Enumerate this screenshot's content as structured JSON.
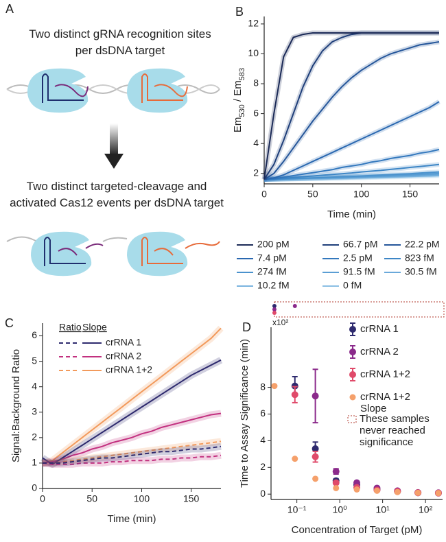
{
  "diagram": {
    "panel": "A",
    "top_text": "Two distinct gRNA recognition sites per dsDNA target",
    "bottom_text": "Two distinct targeted-cleavage and activated Cas12 events per dsDNA target"
  },
  "chart_data": [
    {
      "type": "line",
      "panel": "B",
      "x_label": "Time (min)",
      "y_label": [
        {
          "text": "Em"
        },
        {
          "text": "530",
          "sub": true
        },
        {
          "text": " / Em"
        },
        {
          "text": "583",
          "sub": true
        }
      ],
      "x": [
        0,
        10,
        20,
        30,
        40,
        50,
        60,
        70,
        80,
        90,
        100,
        110,
        120,
        130,
        140,
        150,
        160,
        170,
        180
      ],
      "xlim": [
        0,
        180
      ],
      "xticks": [
        0,
        50,
        100,
        150
      ],
      "ylim": [
        1.3,
        12.5
      ],
      "yticks": [
        2,
        4,
        6,
        8,
        10,
        12
      ],
      "legend_columns": 3,
      "series": [
        {
          "name": "200 pM",
          "color": "#1b2a57",
          "values": [
            1.6,
            6.0,
            9.8,
            11.1,
            11.3,
            11.4,
            11.4,
            11.4,
            11.4,
            11.4,
            11.4,
            11.4,
            11.4,
            11.4,
            11.4,
            11.4,
            11.4,
            11.4,
            11.4
          ]
        },
        {
          "name": "66.7 pM",
          "color": "#1f3f7a",
          "values": [
            1.6,
            2.6,
            4.2,
            6.0,
            7.8,
            9.2,
            10.2,
            10.8,
            11.1,
            11.3,
            11.4,
            11.4,
            11.4,
            11.4,
            11.4,
            11.4,
            11.4,
            11.4,
            11.4
          ]
        },
        {
          "name": "22.2 pM",
          "color": "#25569a",
          "values": [
            1.6,
            2.0,
            2.8,
            3.7,
            4.6,
            5.5,
            6.3,
            7.1,
            7.8,
            8.4,
            8.9,
            9.3,
            9.7,
            10.0,
            10.2,
            10.4,
            10.6,
            10.7,
            10.8
          ]
        },
        {
          "name": "7.4 pM",
          "color": "#2a68b0",
          "values": [
            1.6,
            1.7,
            1.9,
            2.2,
            2.5,
            2.8,
            3.1,
            3.4,
            3.7,
            4.0,
            4.3,
            4.6,
            4.9,
            5.2,
            5.5,
            5.8,
            6.1,
            6.4,
            6.8
          ]
        },
        {
          "name": "2.5 pM",
          "color": "#3378bd",
          "values": [
            1.6,
            1.65,
            1.75,
            1.85,
            1.95,
            2.05,
            2.15,
            2.25,
            2.4,
            2.5,
            2.6,
            2.75,
            2.85,
            3.0,
            3.1,
            3.2,
            3.35,
            3.45,
            3.6
          ]
        },
        {
          "name": "823 fM",
          "color": "#3d86c6",
          "values": [
            1.6,
            1.63,
            1.68,
            1.73,
            1.78,
            1.83,
            1.88,
            1.93,
            1.98,
            2.03,
            2.1,
            2.15,
            2.2,
            2.27,
            2.33,
            2.4,
            2.46,
            2.53,
            2.6
          ]
        },
        {
          "name": "274 fM",
          "color": "#4a92cd",
          "values": [
            1.6,
            1.62,
            1.64,
            1.66,
            1.68,
            1.7,
            1.72,
            1.75,
            1.78,
            1.8,
            1.83,
            1.86,
            1.89,
            1.92,
            1.95,
            1.98,
            2.02,
            2.06,
            2.1
          ]
        },
        {
          "name": "91.5 fM",
          "color": "#5a9ed4",
          "values": [
            1.6,
            1.61,
            1.63,
            1.65,
            1.67,
            1.69,
            1.71,
            1.73,
            1.75,
            1.77,
            1.79,
            1.81,
            1.83,
            1.85,
            1.88,
            1.91,
            1.94,
            1.97,
            2.0
          ]
        },
        {
          "name": "30.5 fM",
          "color": "#6aa9da",
          "values": [
            1.6,
            1.61,
            1.62,
            1.64,
            1.66,
            1.68,
            1.7,
            1.72,
            1.73,
            1.75,
            1.77,
            1.79,
            1.81,
            1.83,
            1.85,
            1.87,
            1.9,
            1.92,
            1.95
          ]
        },
        {
          "name": "10.2 fM",
          "color": "#7ab4df",
          "values": [
            1.6,
            1.61,
            1.62,
            1.63,
            1.65,
            1.67,
            1.68,
            1.7,
            1.71,
            1.73,
            1.74,
            1.76,
            1.78,
            1.79,
            1.81,
            1.83,
            1.85,
            1.87,
            1.9
          ]
        },
        {
          "name": "0 fM",
          "color": "#8abfe4",
          "values": [
            1.6,
            1.61,
            1.62,
            1.63,
            1.64,
            1.65,
            1.66,
            1.67,
            1.68,
            1.7,
            1.71,
            1.73,
            1.74,
            1.76,
            1.77,
            1.79,
            1.81,
            1.83,
            1.85
          ]
        }
      ]
    },
    {
      "type": "line",
      "panel": "C",
      "x_label": "Time (min)",
      "y_label": [
        {
          "text": "Signal:Background Ratio"
        }
      ],
      "x": [
        0,
        10,
        20,
        30,
        40,
        50,
        60,
        70,
        80,
        90,
        100,
        110,
        120,
        130,
        140,
        150,
        160,
        170,
        180
      ],
      "xlim": [
        0,
        180
      ],
      "xticks": [
        0,
        50,
        100,
        150
      ],
      "ylim": [
        0,
        6.5
      ],
      "yticks": [
        0,
        1,
        2,
        3,
        4,
        5,
        6
      ],
      "legend_headers": [
        "Ratio",
        "Slope"
      ],
      "series": [
        {
          "color": "#2e2a6e",
          "dash": true,
          "values": [
            1.0,
            1.0,
            1.0,
            1.05,
            1.1,
            1.15,
            1.2,
            1.2,
            1.25,
            1.3,
            1.35,
            1.4,
            1.45,
            1.45,
            1.5,
            1.55,
            1.55,
            1.6,
            1.65
          ]
        },
        {
          "color": "#c2307f",
          "dash": true,
          "values": [
            1.0,
            0.95,
            0.95,
            0.95,
            1.0,
            1.0,
            1.0,
            1.05,
            1.05,
            1.1,
            1.1,
            1.1,
            1.15,
            1.15,
            1.2,
            1.2,
            1.25,
            1.25,
            1.3
          ]
        },
        {
          "color": "#f29a5c",
          "dash": true,
          "values": [
            1.0,
            1.0,
            1.05,
            1.1,
            1.15,
            1.2,
            1.25,
            1.3,
            1.35,
            1.4,
            1.45,
            1.5,
            1.55,
            1.6,
            1.65,
            1.7,
            1.75,
            1.8,
            1.85
          ]
        },
        {
          "name": "crRNA 1",
          "color": "#2e2a6e",
          "values": [
            1.2,
            0.95,
            1.2,
            1.45,
            1.7,
            1.95,
            2.2,
            2.45,
            2.7,
            2.95,
            3.2,
            3.45,
            3.7,
            3.95,
            4.2,
            4.45,
            4.65,
            4.85,
            5.05
          ]
        },
        {
          "name": "crRNA 2",
          "color": "#c2307f",
          "values": [
            1.0,
            1.05,
            1.15,
            1.3,
            1.4,
            1.55,
            1.65,
            1.8,
            1.9,
            2.0,
            2.15,
            2.25,
            2.4,
            2.5,
            2.6,
            2.7,
            2.8,
            2.9,
            2.95
          ]
        },
        {
          "name": "crRNA 1+2",
          "color": "#f29a5c",
          "values": [
            1.0,
            1.1,
            1.4,
            1.7,
            2.0,
            2.3,
            2.6,
            2.9,
            3.2,
            3.5,
            3.8,
            4.1,
            4.4,
            4.7,
            5.0,
            5.3,
            5.6,
            5.9,
            6.3
          ]
        }
      ]
    },
    {
      "type": "scatter",
      "panel": "D",
      "x_label": "Concentration of Target (pM)",
      "y_label": [
        {
          "text": "Time to Assay Significance (min)"
        }
      ],
      "x_log": true,
      "xlim": [
        0.025,
        250
      ],
      "xticks": [
        {
          "value": 0.1,
          "label": "10⁻¹"
        },
        {
          "value": 1,
          "label": "10⁰"
        },
        {
          "value": 10,
          "label": "10¹"
        },
        {
          "value": 100,
          "label": "10²"
        }
      ],
      "ylim": [
        -40,
        1250
      ],
      "yticks": [
        0,
        {
          "value": 200,
          "label": "2"
        },
        {
          "value": 400,
          "label": "4"
        },
        {
          "value": 600,
          "label": "6"
        },
        {
          "value": 800,
          "label": "8"
        }
      ],
      "y_multiplier": "x10²",
      "series": [
        {
          "name": "crRNA 1",
          "color": "#2e2a6e",
          "x": [
            0.09,
            0.27,
            0.82,
            2.5,
            7.4,
            22.2,
            66.7,
            200
          ],
          "values": [
            810,
            340,
            100,
            70,
            35,
            20,
            10,
            8
          ],
          "errors": [
            70,
            50,
            15,
            10,
            6,
            4,
            3,
            3
          ]
        },
        {
          "name": "crRNA 2",
          "color": "#8b2a8b",
          "x": [
            0.27,
            0.82,
            2.5,
            7.4,
            22.2,
            66.7,
            200
          ],
          "values": [
            735,
            170,
            85,
            45,
            25,
            12,
            10
          ],
          "errors": [
            200,
            20,
            10,
            6,
            4,
            3,
            3
          ]
        },
        {
          "name": "crRNA 1+2",
          "color": "#e04a6a",
          "x": [
            0.09,
            0.27,
            0.82,
            2.5,
            7.4,
            22.2,
            66.7,
            200
          ],
          "values": [
            745,
            280,
            85,
            50,
            30,
            20,
            10,
            8
          ],
          "errors": [
            60,
            40,
            12,
            8,
            5,
            4,
            3,
            3
          ]
        },
        {
          "name": "crRNA 1+2 Slope",
          "color": "#f5a06b",
          "x": [
            0.03,
            0.09,
            0.27,
            0.82,
            2.5,
            7.4,
            22.2,
            66.7,
            200
          ],
          "values": [
            810,
            265,
            115,
            45,
            35,
            25,
            15,
            10,
            8
          ]
        }
      ],
      "never_reached": [
        {
          "series": 0,
          "x": 0.03
        },
        {
          "series": 1,
          "x": 0.03
        },
        {
          "series": 2,
          "x": 0.03
        },
        {
          "series": 1,
          "x": 0.09
        }
      ],
      "never_reached_label": "These samples never reached significance"
    }
  ]
}
